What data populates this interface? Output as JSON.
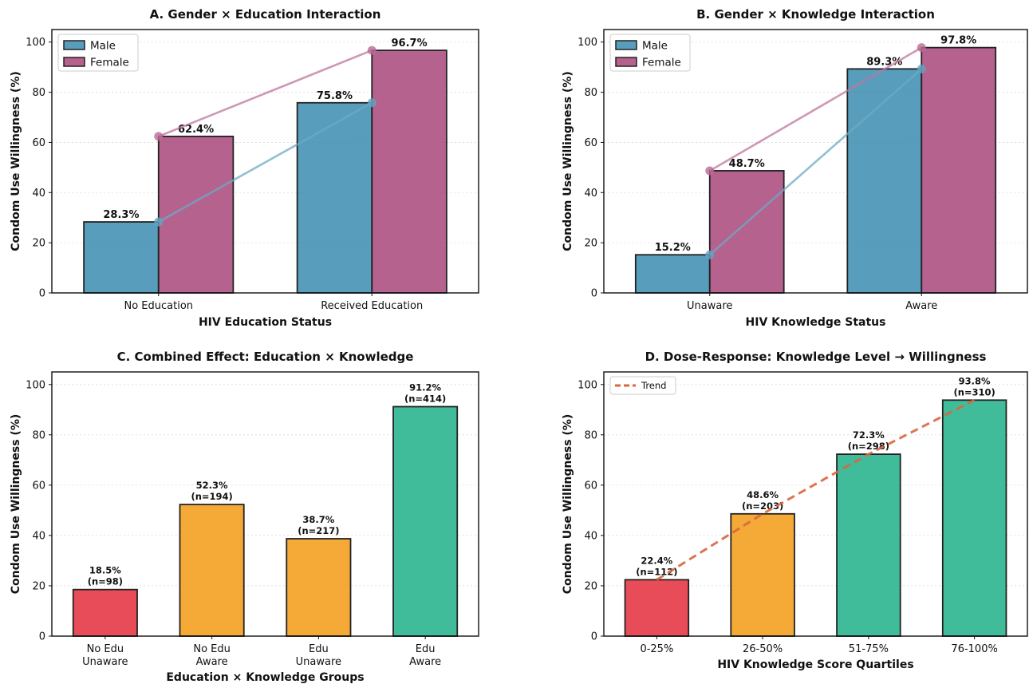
{
  "chart_data": [
    {
      "id": "A",
      "type": "bar",
      "title": "A. Gender × Education Interaction",
      "xlabel": "HIV Education Status",
      "ylabel": "Condom Use Willingness (%)",
      "ylim": [
        0,
        105
      ],
      "yticks": [
        0,
        20,
        40,
        60,
        80,
        100
      ],
      "grid": true,
      "legend": "upper-left",
      "categories": [
        [
          "No Education"
        ],
        [
          "Received Education"
        ]
      ],
      "series": [
        {
          "name": "Male",
          "values": [
            28.3,
            75.8
          ],
          "labels": [
            "28.3%",
            "75.8%"
          ],
          "color": "#2E86AB"
        },
        {
          "name": "Female",
          "values": [
            62.4,
            96.7
          ],
          "labels": [
            "62.4%",
            "96.7%"
          ],
          "color": "#A23B72"
        }
      ],
      "interaction_lines": true
    },
    {
      "id": "B",
      "type": "bar",
      "title": "B. Gender × Knowledge Interaction",
      "xlabel": "HIV Knowledge Status",
      "ylabel": "Condom Use Willingness (%)",
      "ylim": [
        0,
        105
      ],
      "yticks": [
        0,
        20,
        40,
        60,
        80,
        100
      ],
      "grid": true,
      "legend": "upper-left",
      "categories": [
        [
          "Unaware"
        ],
        [
          "Aware"
        ]
      ],
      "series": [
        {
          "name": "Male",
          "values": [
            15.2,
            89.3
          ],
          "labels": [
            "15.2%",
            "89.3%"
          ],
          "color": "#2E86AB"
        },
        {
          "name": "Female",
          "values": [
            48.7,
            97.8
          ],
          "labels": [
            "48.7%",
            "97.8%"
          ],
          "color": "#A23B72"
        }
      ],
      "interaction_lines": true
    },
    {
      "id": "C",
      "type": "bar",
      "title": "C. Combined Effect: Education × Knowledge",
      "xlabel": "Education × Knowledge Groups",
      "ylabel": "Condom Use Willingness (%)",
      "ylim": [
        0,
        105
      ],
      "yticks": [
        0,
        20,
        40,
        60,
        80,
        100
      ],
      "grid": true,
      "categories": [
        [
          "No Edu",
          "Unaware"
        ],
        [
          "No Edu",
          "Aware"
        ],
        [
          "Edu",
          "Unaware"
        ],
        [
          "Edu",
          "Aware"
        ]
      ],
      "values": [
        18.5,
        52.3,
        38.7,
        91.2
      ],
      "labels": [
        [
          "18.5%",
          "(n=98)"
        ],
        [
          "52.3%",
          "(n=194)"
        ],
        [
          "38.7%",
          "(n=217)"
        ],
        [
          "91.2%",
          "(n=414)"
        ]
      ],
      "colors": [
        "#E63946",
        "#F4A021",
        "#F4A021",
        "#2BB58F"
      ]
    },
    {
      "id": "D",
      "type": "bar",
      "title": "D. Dose-Response: Knowledge Level → Willingness",
      "xlabel": "HIV Knowledge Score Quartiles",
      "ylabel": "Condom Use Willingness (%)",
      "ylim": [
        0,
        105
      ],
      "yticks": [
        0,
        20,
        40,
        60,
        80,
        100
      ],
      "grid": true,
      "legend": "upper-left",
      "categories": [
        [
          "0-25%"
        ],
        [
          "26-50%"
        ],
        [
          "51-75%"
        ],
        [
          "76-100%"
        ]
      ],
      "values": [
        22.4,
        48.6,
        72.3,
        93.8
      ],
      "labels": [
        [
          "22.4%",
          "(n=112)"
        ],
        [
          "48.6%",
          "(n=203)"
        ],
        [
          "72.3%",
          "(n=298)"
        ],
        [
          "93.8%",
          "(n=310)"
        ]
      ],
      "colors": [
        "#E63946",
        "#F4A021",
        "#2BB58F",
        "#2BB58F"
      ],
      "trend": {
        "name": "Trend",
        "values": [
          22.4,
          48.6,
          72.3,
          93.8
        ],
        "color": "#D9663F",
        "style": "dashed"
      }
    }
  ]
}
